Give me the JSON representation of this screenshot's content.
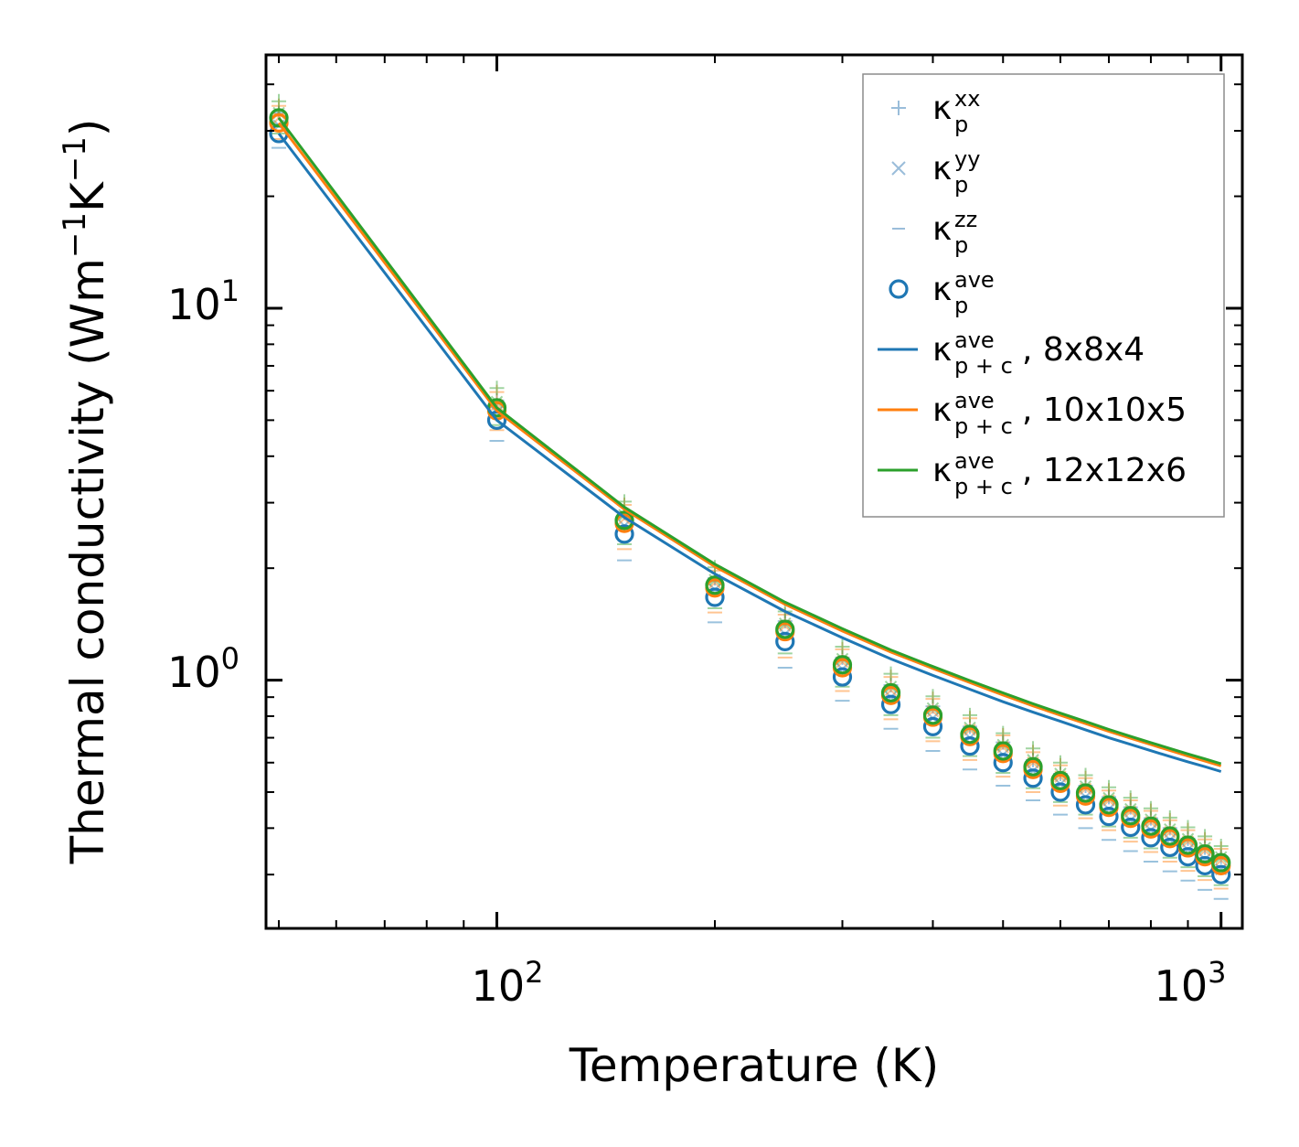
{
  "chart_data": {
    "type": "scatter",
    "title": "",
    "xlabel": "Temperature (K)",
    "ylabel_main": "Thermal conductivity (Wm",
    "ylabel_exp1": "−1",
    "ylabel_mid": "K",
    "ylabel_exp2": "−1",
    "ylabel_end": ")",
    "x_scale": "log",
    "y_scale": "log",
    "xlim": [
      48,
      1070
    ],
    "ylim": [
      0.215,
      48
    ],
    "x_ticks": [
      {
        "value": 100,
        "base": "10",
        "exp": "2"
      },
      {
        "value": 1000,
        "base": "10",
        "exp": "3"
      }
    ],
    "y_ticks": [
      {
        "value": 1,
        "base": "10",
        "exp": "0"
      },
      {
        "value": 10,
        "base": "10",
        "exp": "1"
      }
    ],
    "x": [
      50,
      100,
      150,
      200,
      250,
      300,
      350,
      400,
      450,
      500,
      550,
      600,
      650,
      700,
      750,
      800,
      850,
      900,
      950,
      1000
    ],
    "series": [
      {
        "name": "8x8x4",
        "color": "#1f77b4",
        "xx": [
          33.5,
          5.65,
          2.82,
          1.88,
          1.44,
          1.15,
          0.97,
          0.85,
          0.75,
          0.68,
          0.61,
          0.56,
          0.52,
          0.485,
          0.455,
          0.425,
          0.4,
          0.375,
          0.355,
          0.335
        ],
        "yy": [
          31.0,
          5.25,
          2.6,
          1.75,
          1.33,
          1.07,
          0.9,
          0.79,
          0.7,
          0.63,
          0.57,
          0.525,
          0.485,
          0.45,
          0.42,
          0.395,
          0.372,
          0.35,
          0.33,
          0.31
        ],
        "zz": [
          27.0,
          4.4,
          2.1,
          1.43,
          1.08,
          0.88,
          0.74,
          0.645,
          0.575,
          0.52,
          0.475,
          0.435,
          0.4,
          0.372,
          0.347,
          0.325,
          0.306,
          0.289,
          0.273,
          0.258
        ],
        "ave": [
          29.5,
          5.0,
          2.47,
          1.67,
          1.27,
          1.02,
          0.86,
          0.75,
          0.665,
          0.6,
          0.545,
          0.5,
          0.462,
          0.43,
          0.402,
          0.377,
          0.355,
          0.335,
          0.317,
          0.3
        ],
        "p_plus_c": [
          29.5,
          5.0,
          2.74,
          1.93,
          1.53,
          1.3,
          1.14,
          1.03,
          0.945,
          0.875,
          0.82,
          0.775,
          0.735,
          0.7,
          0.672,
          0.646,
          0.623,
          0.603,
          0.585,
          0.568
        ]
      },
      {
        "name": "10x10x5",
        "color": "#ff7f0e",
        "xx": [
          35.0,
          5.95,
          2.96,
          1.97,
          1.5,
          1.21,
          1.02,
          0.89,
          0.79,
          0.71,
          0.64,
          0.59,
          0.545,
          0.505,
          0.475,
          0.445,
          0.42,
          0.395,
          0.373,
          0.352
        ],
        "yy": [
          32.5,
          5.5,
          2.72,
          1.83,
          1.4,
          1.12,
          0.94,
          0.825,
          0.735,
          0.66,
          0.6,
          0.55,
          0.51,
          0.475,
          0.443,
          0.415,
          0.39,
          0.368,
          0.348,
          0.328
        ],
        "zz": [
          28.5,
          4.7,
          2.25,
          1.52,
          1.15,
          0.935,
          0.785,
          0.685,
          0.61,
          0.55,
          0.5,
          0.46,
          0.425,
          0.395,
          0.368,
          0.345,
          0.325,
          0.307,
          0.29,
          0.275
        ],
        "ave": [
          31.5,
          5.3,
          2.64,
          1.77,
          1.35,
          1.08,
          0.91,
          0.795,
          0.705,
          0.635,
          0.575,
          0.528,
          0.488,
          0.455,
          0.425,
          0.398,
          0.375,
          0.354,
          0.335,
          0.317
        ],
        "p_plus_c": [
          31.5,
          5.3,
          2.88,
          2.02,
          1.6,
          1.355,
          1.19,
          1.075,
          0.985,
          0.912,
          0.853,
          0.805,
          0.764,
          0.728,
          0.698,
          0.671,
          0.647,
          0.625,
          0.606,
          0.588
        ]
      },
      {
        "name": "12x12x6",
        "color": "#2ca02c",
        "xx": [
          36.0,
          6.1,
          3.02,
          2.01,
          1.53,
          1.23,
          1.04,
          0.905,
          0.805,
          0.72,
          0.655,
          0.6,
          0.555,
          0.515,
          0.483,
          0.452,
          0.427,
          0.402,
          0.38,
          0.358
        ],
        "yy": [
          33.5,
          5.6,
          2.78,
          1.86,
          1.42,
          1.14,
          0.96,
          0.84,
          0.745,
          0.67,
          0.61,
          0.56,
          0.518,
          0.482,
          0.45,
          0.422,
          0.397,
          0.374,
          0.354,
          0.334
        ],
        "zz": [
          29.5,
          4.85,
          2.32,
          1.56,
          1.18,
          0.96,
          0.805,
          0.7,
          0.625,
          0.563,
          0.512,
          0.47,
          0.435,
          0.404,
          0.377,
          0.353,
          0.333,
          0.314,
          0.297,
          0.281
        ],
        "ave": [
          32.5,
          5.4,
          2.69,
          1.8,
          1.37,
          1.1,
          0.925,
          0.805,
          0.715,
          0.645,
          0.585,
          0.537,
          0.497,
          0.462,
          0.432,
          0.405,
          0.381,
          0.36,
          0.341,
          0.323
        ],
        "p_plus_c": [
          32.5,
          5.4,
          2.92,
          2.05,
          1.62,
          1.375,
          1.205,
          1.088,
          0.997,
          0.924,
          0.864,
          0.815,
          0.774,
          0.737,
          0.706,
          0.679,
          0.655,
          0.633,
          0.614,
          0.596
        ]
      }
    ],
    "legend_position": "top-right",
    "legend": [
      {
        "marker": "plus",
        "kappa": "κ",
        "sub": "p",
        "sup": "xx",
        "suffix": ""
      },
      {
        "marker": "cross",
        "kappa": "κ",
        "sub": "p",
        "sup": "yy",
        "suffix": ""
      },
      {
        "marker": "dash",
        "kappa": "κ",
        "sub": "p",
        "sup": "zz",
        "suffix": ""
      },
      {
        "marker": "circle",
        "kappa": "κ",
        "sub": "p",
        "sup": "ave",
        "suffix": ""
      },
      {
        "marker": "line-blue",
        "kappa": "κ",
        "sub": "p + c",
        "sup": "ave",
        "suffix": ", 8x8x4"
      },
      {
        "marker": "line-orange",
        "kappa": "κ",
        "sub": "p + c",
        "sup": "ave",
        "suffix": ", 10x10x5"
      },
      {
        "marker": "line-green",
        "kappa": "κ",
        "sub": "p + c",
        "sup": "ave",
        "suffix": ", 12x12x6"
      }
    ],
    "colors": {
      "blue": "#1f77b4",
      "orange": "#ff7f0e",
      "green": "#2ca02c",
      "light_blue": "#8fb6d6"
    }
  }
}
